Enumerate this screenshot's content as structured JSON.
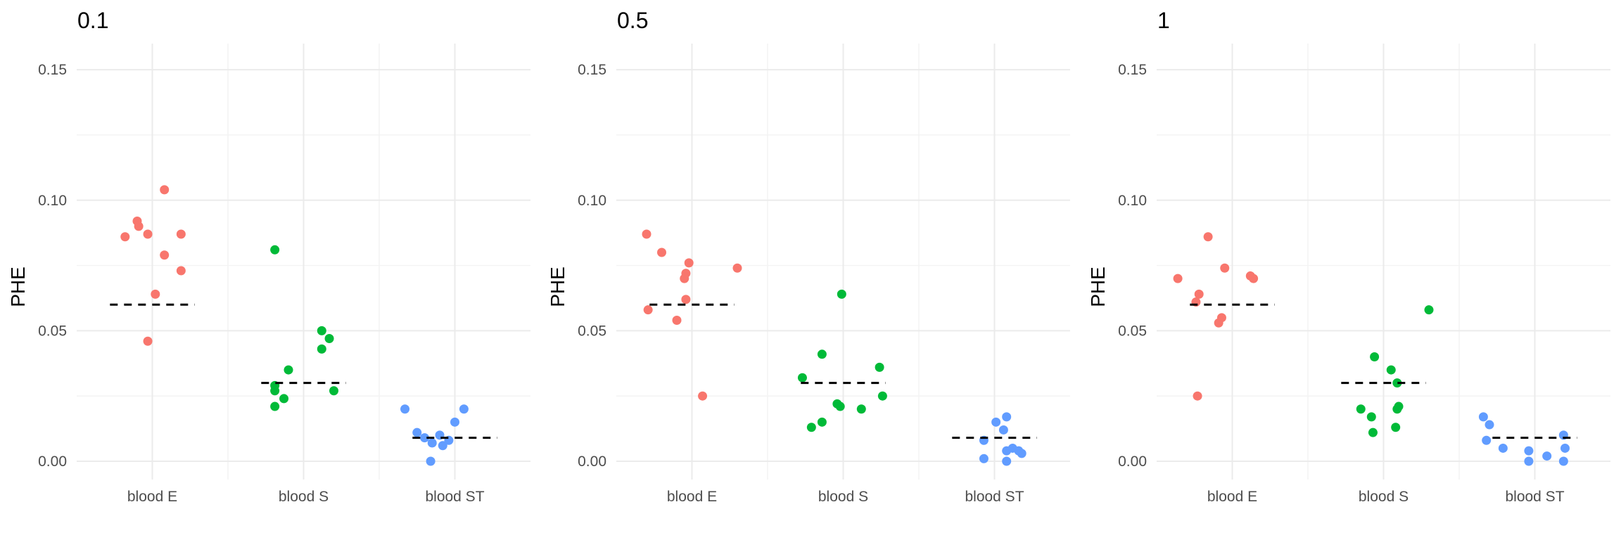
{
  "chart_data": {
    "type": "scatter",
    "ylabel": "PHE",
    "ylim": [
      -0.007,
      0.16
    ],
    "yticks": [
      0.0,
      0.05,
      0.1,
      0.15
    ],
    "ytick_labels": [
      "0.00",
      "0.05",
      "0.10",
      "0.15"
    ],
    "categories": [
      "blood E",
      "blood S",
      "blood ST"
    ],
    "colors": {
      "blood E": "#F8766D",
      "blood S": "#00BA38",
      "blood ST": "#619CFF"
    },
    "grid": true,
    "legend": "none",
    "panels": [
      {
        "title": "0.1",
        "reference_lines": {
          "blood E": 0.06,
          "blood S": 0.03,
          "blood ST": 0.009
        },
        "points": {
          "blood E": [
            [
              -0.18,
              0.086
            ],
            [
              -0.1,
              0.092
            ],
            [
              -0.09,
              0.09
            ],
            [
              -0.03,
              0.087
            ],
            [
              0.08,
              0.104
            ],
            [
              0.19,
              0.087
            ],
            [
              0.08,
              0.079
            ],
            [
              0.19,
              0.073
            ],
            [
              0.02,
              0.064
            ],
            [
              -0.03,
              0.046
            ]
          ],
          "blood S": [
            [
              -0.19,
              0.081
            ],
            [
              0.12,
              0.05
            ],
            [
              0.17,
              0.047
            ],
            [
              0.12,
              0.043
            ],
            [
              -0.1,
              0.035
            ],
            [
              -0.19,
              0.029
            ],
            [
              -0.19,
              0.027
            ],
            [
              0.2,
              0.027
            ],
            [
              -0.13,
              0.024
            ],
            [
              -0.19,
              0.021
            ]
          ],
          "blood ST": [
            [
              -0.33,
              0.02
            ],
            [
              0.06,
              0.02
            ],
            [
              -0.25,
              0.011
            ],
            [
              -0.2,
              0.009
            ],
            [
              -0.1,
              0.01
            ],
            [
              -0.04,
              0.008
            ],
            [
              0.0,
              0.015
            ],
            [
              -0.15,
              0.007
            ],
            [
              -0.08,
              0.006
            ],
            [
              -0.16,
              0.0
            ]
          ]
        }
      },
      {
        "title": "0.5",
        "reference_lines": {
          "blood E": 0.06,
          "blood S": 0.03,
          "blood ST": 0.009
        },
        "points": {
          "blood E": [
            [
              -0.3,
              0.087
            ],
            [
              -0.2,
              0.08
            ],
            [
              -0.02,
              0.076
            ],
            [
              -0.04,
              0.072
            ],
            [
              -0.05,
              0.07
            ],
            [
              0.3,
              0.074
            ],
            [
              -0.04,
              0.062
            ],
            [
              -0.29,
              0.058
            ],
            [
              -0.1,
              0.054
            ],
            [
              0.07,
              0.025
            ]
          ],
          "blood S": [
            [
              -0.01,
              0.064
            ],
            [
              -0.14,
              0.041
            ],
            [
              0.24,
              0.036
            ],
            [
              -0.27,
              0.032
            ],
            [
              -0.04,
              0.022
            ],
            [
              0.26,
              0.025
            ],
            [
              -0.02,
              0.021
            ],
            [
              0.12,
              0.02
            ],
            [
              -0.14,
              0.015
            ],
            [
              -0.21,
              0.013
            ]
          ],
          "blood ST": [
            [
              0.08,
              0.017
            ],
            [
              0.01,
              0.015
            ],
            [
              0.06,
              0.012
            ],
            [
              -0.07,
              0.008
            ],
            [
              0.12,
              0.005
            ],
            [
              0.08,
              0.004
            ],
            [
              0.16,
              0.004
            ],
            [
              0.18,
              0.003
            ],
            [
              -0.07,
              0.001
            ],
            [
              0.08,
              0.0
            ]
          ]
        }
      },
      {
        "title": "1",
        "reference_lines": {
          "blood E": 0.06,
          "blood S": 0.03,
          "blood ST": 0.009
        },
        "points": {
          "blood E": [
            [
              -0.16,
              0.086
            ],
            [
              -0.05,
              0.074
            ],
            [
              0.12,
              0.071
            ],
            [
              0.14,
              0.07
            ],
            [
              -0.36,
              0.07
            ],
            [
              -0.22,
              0.064
            ],
            [
              -0.24,
              0.061
            ],
            [
              -0.07,
              0.055
            ],
            [
              -0.09,
              0.053
            ],
            [
              -0.23,
              0.025
            ]
          ],
          "blood S": [
            [
              0.3,
              0.058
            ],
            [
              -0.06,
              0.04
            ],
            [
              0.05,
              0.035
            ],
            [
              0.09,
              0.03
            ],
            [
              0.1,
              0.021
            ],
            [
              0.09,
              0.02
            ],
            [
              -0.15,
              0.02
            ],
            [
              -0.08,
              0.017
            ],
            [
              0.08,
              0.013
            ],
            [
              -0.07,
              0.011
            ]
          ],
          "blood ST": [
            [
              -0.34,
              0.017
            ],
            [
              -0.3,
              0.014
            ],
            [
              -0.32,
              0.008
            ],
            [
              -0.21,
              0.005
            ],
            [
              -0.04,
              0.004
            ],
            [
              0.08,
              0.002
            ],
            [
              0.19,
              0.01
            ],
            [
              0.2,
              0.005
            ],
            [
              -0.04,
              0.0
            ],
            [
              0.19,
              0.0
            ]
          ]
        }
      }
    ]
  }
}
